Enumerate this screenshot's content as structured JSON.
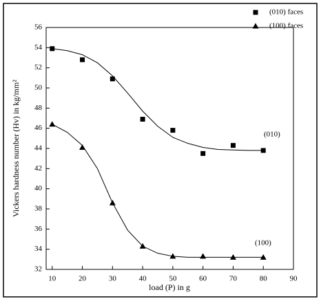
{
  "chart_data": {
    "type": "scatter",
    "x_label": "load (P) in g",
    "y_label": "Vickers hardness number (Hv) in kg/mm²",
    "xlim": [
      8,
      90
    ],
    "ylim": [
      32,
      56
    ],
    "xticks": [
      10,
      20,
      30,
      40,
      50,
      60,
      70,
      80,
      90
    ],
    "yticks": [
      32,
      34,
      36,
      38,
      40,
      42,
      44,
      46,
      48,
      50,
      52,
      54,
      56
    ],
    "legend": "top-right",
    "annotations": [
      "(010)",
      "(100)"
    ],
    "series": [
      {
        "name": "(010) faces",
        "marker": "square",
        "color": "#000000",
        "x": [
          10,
          20,
          30,
          40,
          50,
          60,
          70,
          80
        ],
        "values": [
          53.9,
          52.8,
          50.9,
          46.9,
          45.8,
          43.5,
          44.3,
          43.8
        ],
        "fit": {
          "x": [
            10,
            15,
            20,
            25,
            30,
            35,
            40,
            45,
            50,
            55,
            60,
            65,
            70,
            75,
            80
          ],
          "values": [
            53.9,
            53.7,
            53.3,
            52.5,
            51.2,
            49.5,
            47.7,
            46.2,
            45.1,
            44.5,
            44.1,
            43.9,
            43.85,
            43.8,
            43.8
          ]
        }
      },
      {
        "name": "(100) faces",
        "marker": "triangle",
        "color": "#000000",
        "x": [
          10,
          20,
          30,
          40,
          50,
          60,
          70,
          80
        ],
        "values": [
          46.4,
          44.1,
          38.6,
          34.3,
          33.3,
          33.3,
          33.2,
          33.2
        ],
        "fit": {
          "x": [
            10,
            15,
            20,
            25,
            30,
            35,
            40,
            45,
            50,
            55,
            60,
            65,
            70,
            75,
            80
          ],
          "values": [
            46.4,
            45.6,
            44.3,
            42.0,
            38.6,
            35.9,
            34.3,
            33.6,
            33.3,
            33.2,
            33.2,
            33.2,
            33.2,
            33.2,
            33.2
          ]
        }
      }
    ]
  }
}
